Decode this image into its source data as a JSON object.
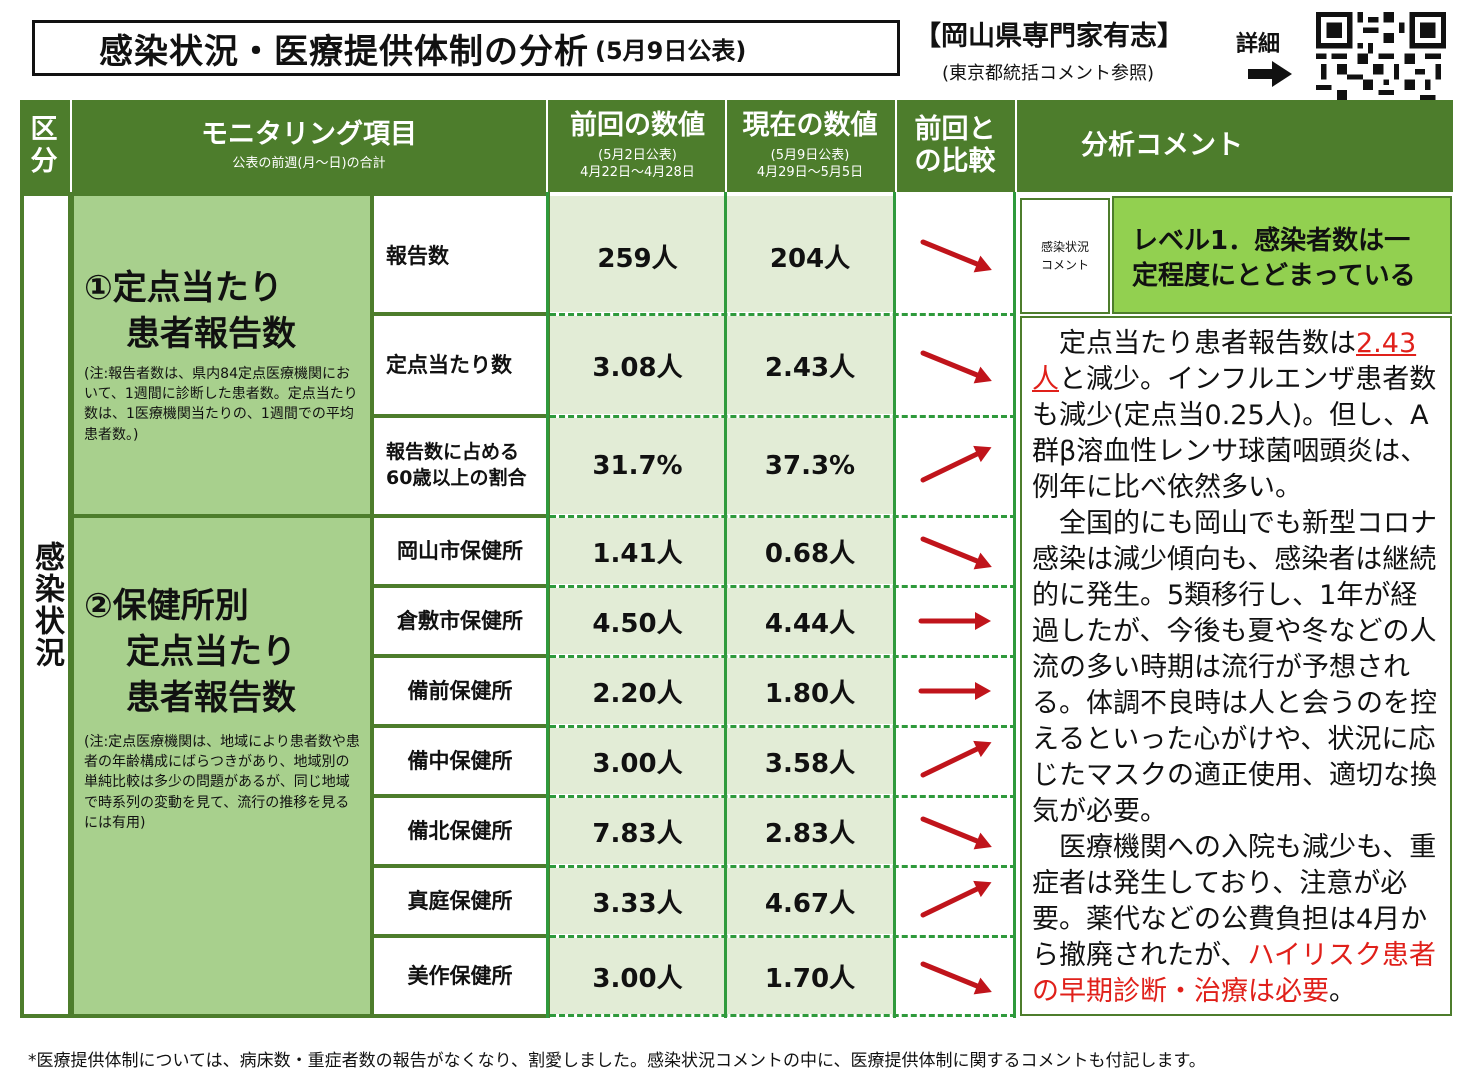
{
  "title": {
    "main": "感染状況・医療提供体制の分析",
    "date": "(5月9日公表)"
  },
  "org": {
    "name": "【岡山県専門家有志】",
    "sub": "(東京都統括コメント参照)",
    "detail": "詳細"
  },
  "header": {
    "kubun": "区分",
    "item_title": "モニタリング項目",
    "item_sub": "公表の前週(月～日)の合計",
    "prev_title": "前回の数値",
    "prev_pub": "(5月2日公表)",
    "prev_range": "4月22日～4月28日",
    "curr_title": "現在の数値",
    "curr_pub": "(5月9日公表)",
    "curr_range": "4月29日～5月5日",
    "compare": "前回との比較",
    "comment": "分析コメント"
  },
  "section_label": "感染状況",
  "items": [
    {
      "title_line1": "①定点当たり",
      "title_line2": "患者報告数",
      "note": "(注:報告者数は、県内84定点医療機関において、1週間に診断した患者数。定点当たり数は、1医療機関当たりの、1週間での平均患者数。)"
    },
    {
      "title_line1": "②保健所別",
      "title_line2": "定点当たり",
      "title_line3": "患者報告数",
      "note": "(注:定点医療機関は、地域により患者数や患者の年齢構成にばらつきがあり、地域別の単純比較は多少の問題があるが、同じ地域で時系列の変動を見て、流行の推移を見るには有用)"
    }
  ],
  "rows": [
    {
      "label": "報告数",
      "prev": "259人",
      "curr": "204人",
      "trend": "down"
    },
    {
      "label": "定点当たり数",
      "prev": "3.08人",
      "curr": "2.43人",
      "trend": "down"
    },
    {
      "label": "報告数に占める60歳以上の割合",
      "label_line1": "報告数に占める",
      "label_line2": "60歳以上の割合",
      "prev": "31.7%",
      "curr": "37.3%",
      "trend": "up"
    },
    {
      "label": "岡山市保健所",
      "prev": "1.41人",
      "curr": "0.68人",
      "trend": "down"
    },
    {
      "label": "倉敷市保健所",
      "prev": "4.50人",
      "curr": "4.44人",
      "trend": "flat"
    },
    {
      "label": "備前保健所",
      "prev": "2.20人",
      "curr": "1.80人",
      "trend": "flat"
    },
    {
      "label": "備中保健所",
      "prev": "3.00人",
      "curr": "3.58人",
      "trend": "up"
    },
    {
      "label": "備北保健所",
      "prev": "7.83人",
      "curr": "2.83人",
      "trend": "down"
    },
    {
      "label": "真庭保健所",
      "prev": "3.33人",
      "curr": "4.67人",
      "trend": "up"
    },
    {
      "label": "美作保健所",
      "prev": "3.00人",
      "curr": "1.70人",
      "trend": "down"
    }
  ],
  "comment": {
    "label_line1": "感染状況",
    "label_line2": "コメント",
    "level_line1": "レベル1．感染者数は一",
    "level_line2": "定程度にとどまっている",
    "p1_a": "　定点当たり患者報告数は",
    "p1_red": "2.43人",
    "p1_b": "と減少。インフルエンザ患者数も減少(定点当0.25人)。但し、A群β溶血性レンサ球菌咽頭炎は、例年に比べ依然多い。",
    "p2": "　全国的にも岡山でも新型コロナ感染は減少傾向も、感染者は継続的に発生。5類移行し、1年が経過したが、今後も夏や冬などの人流の多い時期は流行が予想される。体調不良時は人と会うのを控えるといった心がけや、状況に応じたマスクの適正使用、適切な換気が必要。",
    "p3_a": "　医療機関への入院も減少も、重症者は発生しており、注意が必要。薬代などの公費負担は4月から撤廃されたが、",
    "p3_red": "ハイリスク患者の早期診断・治療は必要",
    "p3_b": "。"
  },
  "footnote": "*医療提供体制については、病床数・重症者数の報告がなくなり、割愛しました。感染状況コメントの中に、医療提供体制に関するコメントも付記します。",
  "colors": {
    "header_green": "#4d7d2c",
    "item_green": "#a8d08d",
    "level_green": "#92d050",
    "value_bg": "#e2ecd6",
    "arrow_red": "#c0141b",
    "divider_green": "#2f9a3c"
  }
}
